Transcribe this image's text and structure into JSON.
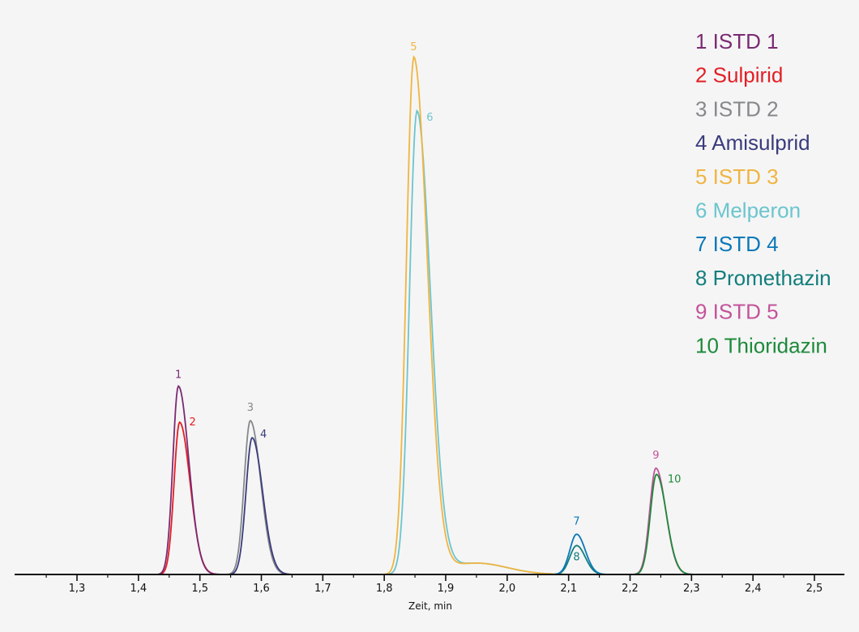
{
  "chart_data": {
    "type": "line",
    "title": "",
    "xlabel": "Zeit, min",
    "ylabel": "",
    "xlim": [
      1.2,
      2.55
    ],
    "ylim": [
      0,
      100
    ],
    "x_ticks": [
      1.3,
      1.4,
      1.5,
      1.6,
      1.7,
      1.8,
      1.9,
      2.0,
      2.1,
      2.2,
      2.3,
      2.4,
      2.5
    ],
    "x_tick_labels": [
      "1,3",
      "1,4",
      "1,5",
      "1,6",
      "1,7",
      "1,8",
      "1,9",
      "2,0",
      "2,1",
      "2,2",
      "2,3",
      "2,4",
      "2,5"
    ],
    "grid": false,
    "legend_position": "top-right",
    "series": [
      {
        "name": "1 ISTD 1",
        "label": "1",
        "color": "#7b2a72",
        "retention_time": 1.465,
        "height": 36.5,
        "sigma_left": 0.009,
        "sigma_right": 0.017
      },
      {
        "name": "2 Sulpirid",
        "label": "2",
        "color": "#e31e24",
        "retention_time": 1.467,
        "height": 29.5,
        "sigma_left": 0.009,
        "sigma_right": 0.017
      },
      {
        "name": "3 ISTD 2",
        "label": "3",
        "color": "#85888c",
        "retention_time": 1.582,
        "height": 29.8,
        "sigma_left": 0.01,
        "sigma_right": 0.017
      },
      {
        "name": "4 Amisulprid",
        "label": "4",
        "color": "#3a3c7c",
        "retention_time": 1.585,
        "height": 26.5,
        "sigma_left": 0.01,
        "sigma_right": 0.017
      },
      {
        "name": "5 ISTD 3",
        "label": "5",
        "color": "#f0b541",
        "retention_time": 1.848,
        "height": 100,
        "sigma_left": 0.012,
        "sigma_right": 0.022,
        "tail": true
      },
      {
        "name": "6 Melperon",
        "label": "6",
        "color": "#6cc5ce",
        "retention_time": 1.853,
        "height": 89.5,
        "sigma_left": 0.012,
        "sigma_right": 0.022,
        "tail": true
      },
      {
        "name": "7 ISTD 4",
        "label": "7",
        "color": "#0a78b8",
        "retention_time": 2.113,
        "height": 7.8,
        "sigma_left": 0.011,
        "sigma_right": 0.014
      },
      {
        "name": "8 Promethazin",
        "label": "8",
        "color": "#127e7d",
        "retention_time": 2.113,
        "height": 5.6,
        "sigma_left": 0.011,
        "sigma_right": 0.014
      },
      {
        "name": "9 ISTD 5",
        "label": "9",
        "color": "#c3539a",
        "retention_time": 2.242,
        "height": 20.6,
        "sigma_left": 0.01,
        "sigma_right": 0.016
      },
      {
        "name": "10 Thioridazin",
        "label": "10",
        "color": "#1d8a3b",
        "retention_time": 2.243,
        "height": 19.4,
        "sigma_left": 0.01,
        "sigma_right": 0.016
      }
    ]
  }
}
